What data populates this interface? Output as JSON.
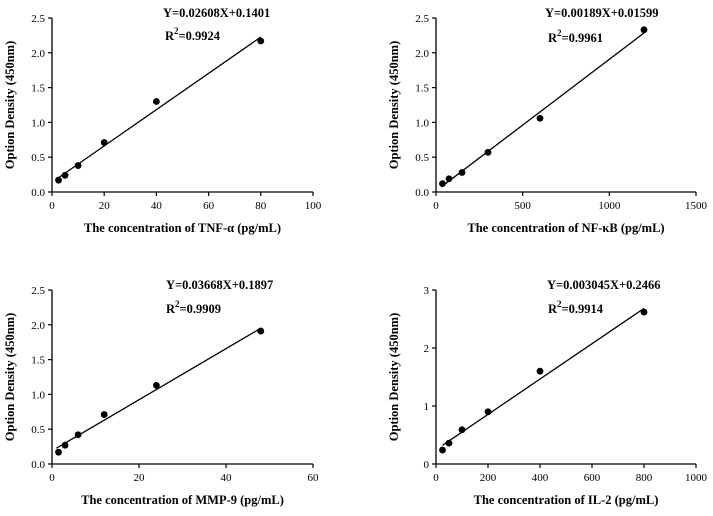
{
  "chart_data": [
    {
      "type": "scatter",
      "analyte": "TNF-α",
      "xlabel": "The concentration of TNF-α  (pg/mL)",
      "ylabel": "Option Density (450nm)",
      "xlim": [
        0,
        100
      ],
      "ylim": [
        0,
        2.5
      ],
      "xticks": [
        "0",
        "20",
        "40",
        "60",
        "80",
        "100"
      ],
      "yticks": [
        "0.0",
        "0.5",
        "1.0",
        "1.5",
        "2.0",
        "2.5"
      ],
      "x": [
        2.5,
        5,
        10,
        20,
        40,
        80
      ],
      "y": [
        0.17,
        0.24,
        0.38,
        0.71,
        1.3,
        2.17
      ],
      "fit": {
        "slope": 0.02608,
        "intercept": 0.1401,
        "x_range": [
          1.5,
          80
        ]
      },
      "equation": "Y=0.02608X+0.1401",
      "r2_label": "R",
      "r2_sup": "2",
      "r2_value": "=0.9924"
    },
    {
      "type": "scatter",
      "analyte": "NF-κB",
      "xlabel": "The concentration of NF-κB  (pg/mL)",
      "ylabel": "Option Density (450nm)",
      "xlim": [
        0,
        1500
      ],
      "ylim": [
        0,
        2.5
      ],
      "xticks": [
        "0",
        "500",
        "1000",
        "1500"
      ],
      "yticks": [
        "0.0",
        "0.5",
        "1.0",
        "1.5",
        "2.0",
        "2.5"
      ],
      "x": [
        37.5,
        75,
        150,
        300,
        600,
        1200
      ],
      "y": [
        0.12,
        0.19,
        0.28,
        0.57,
        1.06,
        2.33
      ],
      "fit": {
        "slope": 0.00189,
        "intercept": 0.01599,
        "x_range": [
          30,
          1200
        ]
      },
      "equation": "Y=0.00189X+0.01599",
      "r2_label": "R",
      "r2_sup": "2",
      "r2_value": "=0.9961"
    },
    {
      "type": "scatter",
      "analyte": "MMP-9",
      "xlabel": "The concentration of MMP-9 (pg/mL)",
      "ylabel": "Option Density (450nm)",
      "xlim": [
        0,
        60
      ],
      "ylim": [
        0,
        2.5
      ],
      "xticks": [
        "0",
        "20",
        "40",
        "60"
      ],
      "yticks": [
        "0.0",
        "0.5",
        "1.0",
        "1.5",
        "2.0",
        "2.5"
      ],
      "x": [
        1.5,
        3,
        6,
        12,
        24,
        48
      ],
      "y": [
        0.17,
        0.27,
        0.42,
        0.71,
        1.13,
        1.91
      ],
      "fit": {
        "slope": 0.03668,
        "intercept": 0.1897,
        "x_range": [
          1.0,
          48
        ]
      },
      "equation": "Y=0.03668X+0.1897",
      "r2_label": "R",
      "r2_sup": "2",
      "r2_value": "=0.9909"
    },
    {
      "type": "scatter",
      "analyte": "IL-2",
      "xlabel": "The concentration of IL-2 (pg/mL)",
      "ylabel": "Option Density (450nm)",
      "xlim": [
        0,
        1000
      ],
      "ylim": [
        0,
        3
      ],
      "xticks": [
        "0",
        "200",
        "400",
        "600",
        "800",
        "1000"
      ],
      "yticks": [
        "0",
        "1",
        "2",
        "3"
      ],
      "x": [
        25,
        50,
        100,
        200,
        400,
        800
      ],
      "y": [
        0.24,
        0.36,
        0.59,
        0.9,
        1.6,
        2.62
      ],
      "fit": {
        "slope": 0.003045,
        "intercept": 0.2466,
        "x_range": [
          25,
          800
        ]
      },
      "equation": "Y=0.003045X+0.2466",
      "r2_label": "R",
      "r2_sup": "2",
      "r2_value": "=0.9914"
    }
  ]
}
